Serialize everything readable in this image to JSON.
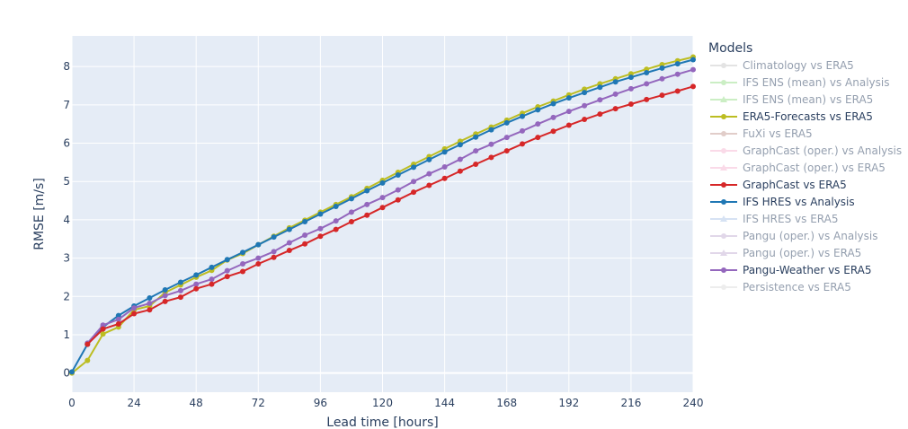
{
  "chart_data": {
    "type": "line",
    "xlabel": "Lead time [hours]",
    "ylabel": "RMSE [m/s]",
    "xlim": [
      0,
      240
    ],
    "ylim": [
      -0.5,
      8.8
    ],
    "xticks": [
      0,
      24,
      48,
      72,
      96,
      120,
      144,
      168,
      192,
      216,
      240
    ],
    "yticks": [
      0,
      1,
      2,
      3,
      4,
      5,
      6,
      7,
      8
    ],
    "grid": true,
    "legend": {
      "title": "Models",
      "placement": "right",
      "entries": [
        {
          "name": "Climatology vs ERA5",
          "color": "#c8c8c8",
          "marker": "circle",
          "hidden": true
        },
        {
          "name": "IFS ENS (mean) vs Analysis",
          "color": "#98df8a",
          "marker": "circle",
          "hidden": true
        },
        {
          "name": "IFS ENS (mean) vs ERA5",
          "color": "#98df8a",
          "marker": "triangle",
          "hidden": true
        },
        {
          "name": "ERA5-Forecasts vs ERA5",
          "color": "#bcbd22",
          "marker": "circle",
          "hidden": false
        },
        {
          "name": "FuXi vs ERA5",
          "color": "#c49c94",
          "marker": "circle",
          "hidden": true
        },
        {
          "name": "GraphCast (oper.) vs Analysis",
          "color": "#f7b6d2",
          "marker": "circle",
          "hidden": true
        },
        {
          "name": "GraphCast (oper.) vs ERA5",
          "color": "#f7b6d2",
          "marker": "triangle",
          "hidden": true
        },
        {
          "name": "GraphCast vs ERA5",
          "color": "#d62728",
          "marker": "circle",
          "hidden": false
        },
        {
          "name": "IFS HRES vs Analysis",
          "color": "#1f77b4",
          "marker": "circle",
          "hidden": false
        },
        {
          "name": "IFS HRES vs ERA5",
          "color": "#aec7e8",
          "marker": "triangle",
          "hidden": true
        },
        {
          "name": "Pangu (oper.) vs Analysis",
          "color": "#c5b0d5",
          "marker": "circle",
          "hidden": true
        },
        {
          "name": "Pangu (oper.) vs ERA5",
          "color": "#c5b0d5",
          "marker": "triangle",
          "hidden": true
        },
        {
          "name": "Pangu-Weather vs ERA5",
          "color": "#9467bd",
          "marker": "circle",
          "hidden": false
        },
        {
          "name": "Persistence vs ERA5",
          "color": "#dcdcdc",
          "marker": "circle",
          "hidden": true
        }
      ]
    },
    "series": [
      {
        "name": "ERA5-Forecasts vs ERA5",
        "color": "#bcbd22",
        "x": [
          0,
          6,
          12,
          18,
          24,
          30,
          36,
          42,
          48,
          54,
          60,
          66,
          72,
          78,
          84,
          90,
          96,
          102,
          108,
          114,
          120,
          126,
          132,
          138,
          144,
          150,
          156,
          162,
          168,
          174,
          180,
          186,
          192,
          198,
          204,
          210,
          216,
          222,
          228,
          234,
          240
        ],
        "y": [
          0.0,
          0.33,
          1.02,
          1.2,
          1.65,
          1.75,
          2.1,
          2.3,
          2.5,
          2.68,
          2.95,
          3.12,
          3.35,
          3.57,
          3.79,
          3.99,
          4.2,
          4.4,
          4.6,
          4.82,
          5.03,
          5.24,
          5.45,
          5.65,
          5.85,
          6.05,
          6.24,
          6.42,
          6.6,
          6.78,
          6.95,
          7.1,
          7.26,
          7.41,
          7.55,
          7.68,
          7.81,
          7.93,
          8.05,
          8.15,
          8.25
        ]
      },
      {
        "name": "IFS HRES vs Analysis",
        "color": "#1f77b4",
        "x": [
          0,
          6,
          12,
          18,
          24,
          30,
          36,
          42,
          48,
          54,
          60,
          66,
          72,
          78,
          84,
          90,
          96,
          102,
          108,
          114,
          120,
          126,
          132,
          138,
          144,
          150,
          156,
          162,
          168,
          174,
          180,
          186,
          192,
          198,
          204,
          210,
          216,
          222,
          228,
          234,
          240
        ],
        "y": [
          0.03,
          0.75,
          1.2,
          1.5,
          1.75,
          1.96,
          2.17,
          2.37,
          2.56,
          2.76,
          2.96,
          3.15,
          3.35,
          3.55,
          3.75,
          3.95,
          4.15,
          4.35,
          4.55,
          4.76,
          4.96,
          5.17,
          5.37,
          5.57,
          5.77,
          5.96,
          6.16,
          6.35,
          6.53,
          6.7,
          6.87,
          7.03,
          7.18,
          7.32,
          7.46,
          7.6,
          7.72,
          7.84,
          7.96,
          8.07,
          8.18
        ]
      },
      {
        "name": "Pangu-Weather vs ERA5",
        "color": "#9467bd",
        "x": [
          6,
          12,
          18,
          24,
          30,
          36,
          42,
          48,
          54,
          60,
          66,
          72,
          78,
          84,
          90,
          96,
          102,
          108,
          114,
          120,
          126,
          132,
          138,
          144,
          150,
          156,
          162,
          168,
          174,
          180,
          186,
          192,
          198,
          204,
          210,
          216,
          222,
          228,
          234,
          240
        ],
        "y": [
          0.78,
          1.25,
          1.4,
          1.7,
          1.82,
          2.02,
          2.15,
          2.32,
          2.45,
          2.67,
          2.85,
          3.0,
          3.17,
          3.4,
          3.6,
          3.77,
          3.97,
          4.2,
          4.4,
          4.58,
          4.78,
          5.0,
          5.2,
          5.38,
          5.58,
          5.8,
          5.97,
          6.15,
          6.32,
          6.5,
          6.67,
          6.83,
          6.98,
          7.13,
          7.28,
          7.42,
          7.55,
          7.68,
          7.8,
          7.92
        ]
      },
      {
        "name": "GraphCast vs ERA5",
        "color": "#d62728",
        "x": [
          6,
          12,
          18,
          24,
          30,
          36,
          42,
          48,
          54,
          60,
          66,
          72,
          78,
          84,
          90,
          96,
          102,
          108,
          114,
          120,
          126,
          132,
          138,
          144,
          150,
          156,
          162,
          168,
          174,
          180,
          186,
          192,
          198,
          204,
          210,
          216,
          222,
          228,
          234,
          240
        ],
        "y": [
          0.75,
          1.15,
          1.28,
          1.55,
          1.65,
          1.87,
          1.98,
          2.2,
          2.32,
          2.52,
          2.65,
          2.85,
          3.02,
          3.2,
          3.37,
          3.57,
          3.75,
          3.95,
          4.12,
          4.32,
          4.52,
          4.72,
          4.9,
          5.08,
          5.27,
          5.45,
          5.63,
          5.8,
          5.98,
          6.15,
          6.31,
          6.47,
          6.62,
          6.76,
          6.9,
          7.02,
          7.14,
          7.25,
          7.36,
          7.48
        ]
      }
    ]
  }
}
